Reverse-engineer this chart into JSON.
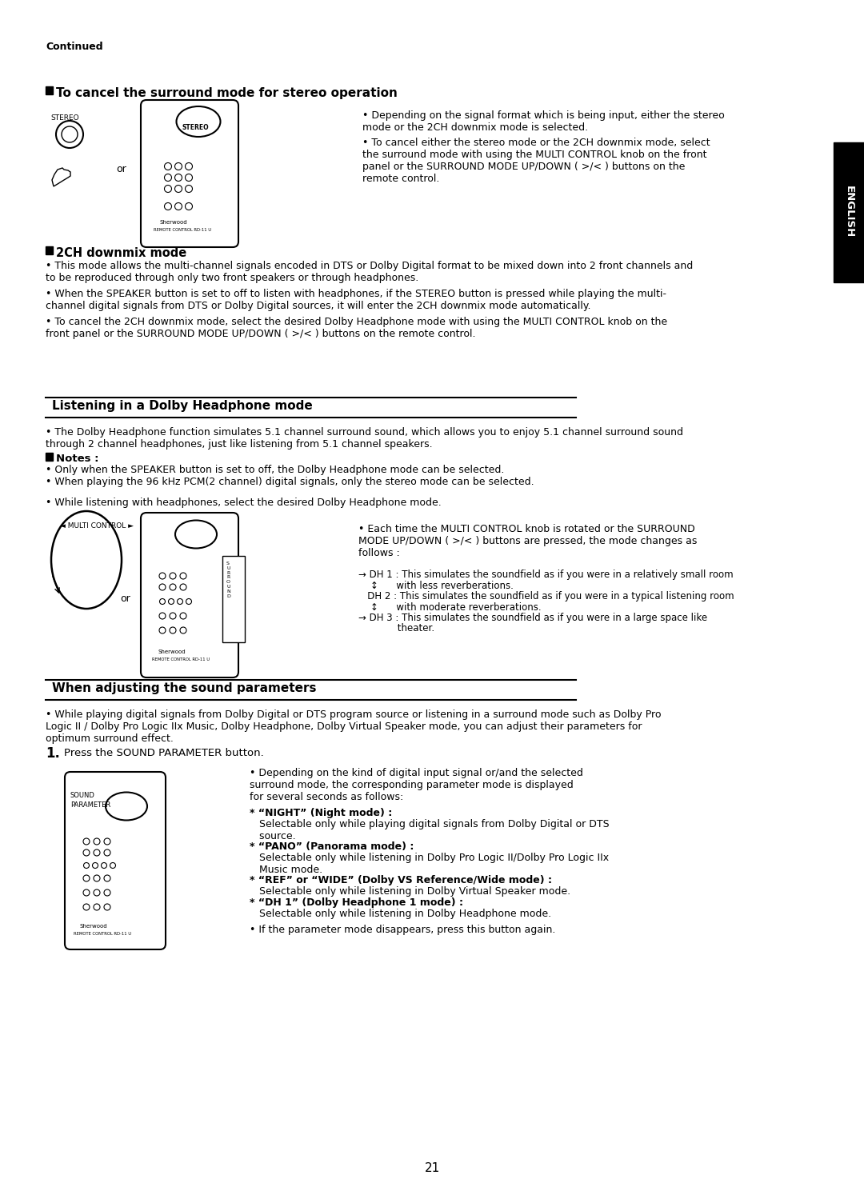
{
  "bg_color": "#ffffff",
  "page_number": "21",
  "continued_text": "Continued",
  "s1_title": "To cancel the surround mode for stereo operation",
  "s1_b1": "Depending on the signal format which is being input, either the stereo\nmode or the 2CH downmix mode is selected.",
  "s1_b2": "To cancel either the stereo mode or the 2CH downmix mode, select\nthe surround mode with using the MULTI CONTROL knob on the front\npanel or the SURROUND MODE UP/DOWN ( >/< ) buttons on the\nremote control.",
  "s2_title": "2CH downmix mode",
  "s2_b1": "This mode allows the multi-channel signals encoded in DTS or Dolby Digital format to be mixed down into 2 front channels and\nto be reproduced through only two front speakers or through headphones.",
  "s2_b2": "When the SPEAKER button is set to off to listen with headphones, if the STEREO button is pressed while playing the multi-\nchannel digital signals from DTS or Dolby Digital sources, it will enter the 2CH downmix mode automatically.",
  "s2_b3": "To cancel the 2CH downmix mode, select the desired Dolby Headphone mode with using the MULTI CONTROL knob on the\nfront panel or the SURROUND MODE UP/DOWN ( >/< ) buttons on the remote control.",
  "s3_title": "Listening in a Dolby Headphone mode",
  "s3_b1": "The Dolby Headphone function simulates 5.1 channel surround sound, which allows you to enjoy 5.1 channel surround sound\nthrough 2 channel headphones, just like listening from 5.1 channel speakers.",
  "notes_title": "Notes :",
  "notes_b1": "Only when the SPEAKER button is set to off, the Dolby Headphone mode can be selected.",
  "notes_b2": "When playing the 96 kHz PCM(2 channel) digital signals, only the stereo mode can be selected.",
  "s3_extra": "While listening with headphones, select the desired Dolby Headphone mode.",
  "s3_diagram": "Each time the MULTI CONTROL knob is rotated or the SURROUND\nMODE UP/DOWN ( >/< ) buttons are pressed, the mode changes as\nfollows :",
  "dh1": "→ DH 1 : This simulates the soundfield as if you were in a relatively small room",
  "dh1b": "    ↕      with less reverberations.",
  "dh2": "   DH 2 : This simulates the soundfield as if you were in a typical listening room",
  "dh2b": "    ↕      with moderate reverberations.",
  "dh3": "→ DH 3 : This simulates the soundfield as if you were in a large space like",
  "dh3b": "             theater.",
  "s4_title": "When adjusting the sound parameters",
  "s4_intro": "While playing digital signals from Dolby Digital or DTS program source or listening in a surround mode such as Dolby Pro\nLogic II / Dolby Pro Logic IIx Music, Dolby Headphone, Dolby Virtual Speaker mode, you can adjust their parameters for\noptimum surround effect.",
  "s4_step1": "Press the SOUND PARAMETER button.",
  "s4_diagram": "Depending on the kind of digital input signal or/and the selected\nsurround mode, the corresponding parameter mode is displayed\nfor several seconds as follows:",
  "s4_m1a": "* “NIGHT” (Night mode) :",
  "s4_m1b": "   Selectable only while playing digital signals from Dolby Digital or DTS\n   source.",
  "s4_m2a": "* “PANO” (Panorama mode) :",
  "s4_m2b": "   Selectable only while listening in Dolby Pro Logic II/Dolby Pro Logic IIx\n   Music mode.",
  "s4_m3a": "* “REF” or “WIDE” (Dolby VS Reference/Wide mode) :",
  "s4_m3b": "   Selectable only while listening in Dolby Virtual Speaker mode.",
  "s4_m4a": "* “DH 1” (Dolby Headphone 1 mode) :",
  "s4_m4b": "   Selectable only while listening in Dolby Headphone mode.",
  "s4_extra": "If the parameter mode disappears, press this button again.",
  "english_tab": "ENGLISH"
}
